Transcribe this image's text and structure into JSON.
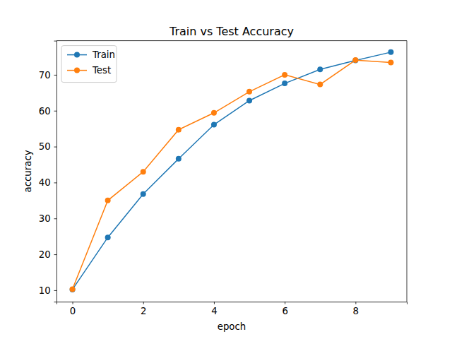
{
  "chart_data": {
    "type": "line",
    "title": "Train vs Test Accuracy",
    "x_label": "epoch",
    "y_label": "accuracy",
    "x": [
      0,
      1,
      2,
      3,
      4,
      5,
      6,
      7,
      8,
      9
    ],
    "series": [
      {
        "name": "Train",
        "color": "#1f77b4",
        "marker": "circle",
        "line_style": "solid",
        "values": [
          10.2,
          24.7,
          36.8,
          46.6,
          56.1,
          62.8,
          67.6,
          71.5,
          74.0,
          76.3
        ]
      },
      {
        "name": "Test",
        "color": "#ff7f0e",
        "marker": "circle",
        "line_style": "solid",
        "values": [
          10.3,
          35.0,
          43.0,
          54.7,
          59.4,
          65.3,
          70.0,
          67.3,
          74.1,
          73.4
        ]
      }
    ],
    "xlim": [
      -0.45,
      9.45
    ],
    "ylim": [
      6.8,
      79.5
    ],
    "xticks": [
      0,
      2,
      4,
      6,
      8
    ],
    "yticks": [
      10,
      20,
      30,
      40,
      50,
      60,
      70
    ],
    "legend": "upper left",
    "grid": false
  }
}
